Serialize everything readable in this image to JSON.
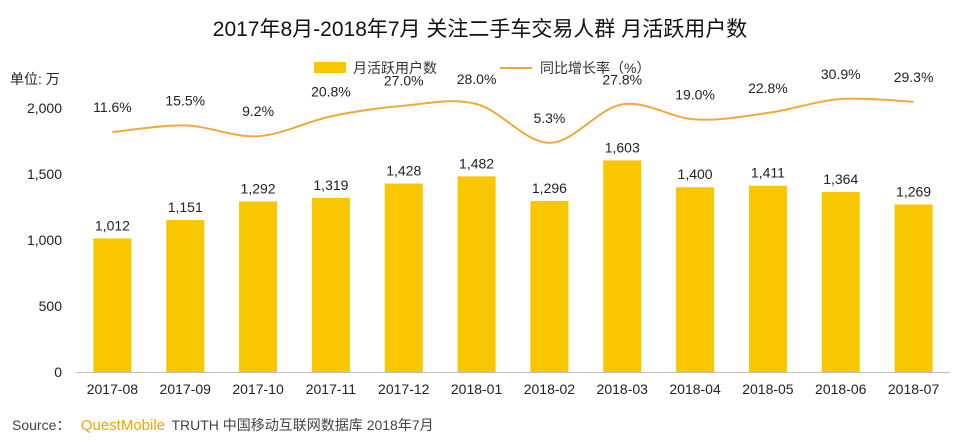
{
  "chart_data": {
    "type": "bar",
    "title": "2017年8月-2018年7月 关注二手车交易人群 月活跃用户数",
    "unit_label": "单位: 万",
    "categories": [
      "2017-08",
      "2017-09",
      "2017-10",
      "2017-11",
      "2017-12",
      "2018-01",
      "2018-02",
      "2018-03",
      "2018-04",
      "2018-05",
      "2018-06",
      "2018-07"
    ],
    "series": [
      {
        "name": "月活跃用户数",
        "type": "bar",
        "color": "#f9c700",
        "values": [
          1012,
          1151,
          1292,
          1319,
          1428,
          1482,
          1296,
          1603,
          1400,
          1411,
          1364,
          1269
        ],
        "labels": [
          "1,012",
          "1,151",
          "1,292",
          "1,319",
          "1,428",
          "1,482",
          "1,296",
          "1,603",
          "1,400",
          "1,411",
          "1,364",
          "1,269"
        ]
      },
      {
        "name": "同比增长率（%）",
        "type": "line",
        "color": "#f2a93b",
        "values": [
          11.6,
          15.5,
          9.2,
          20.8,
          27.0,
          28.0,
          5.3,
          27.8,
          19.0,
          22.8,
          30.9,
          29.3
        ],
        "labels": [
          "11.6%",
          "15.5%",
          "9.2%",
          "20.8%",
          "27.0%",
          "28.0%",
          "5.3%",
          "27.8%",
          "19.0%",
          "22.8%",
          "30.9%",
          "29.3%"
        ]
      }
    ],
    "ylim": [
      0,
      2000
    ],
    "yticks": [
      0,
      500,
      1000,
      1500,
      2000
    ],
    "ytick_labels": [
      "0",
      "500",
      "1,000",
      "1,500",
      "2,000"
    ],
    "legend_position": "top-center"
  },
  "source": {
    "prefix": "Source：",
    "brand": "QuestMobile",
    "suffix": "TRUTH 中国移动互联网数据库 2018年7月"
  }
}
